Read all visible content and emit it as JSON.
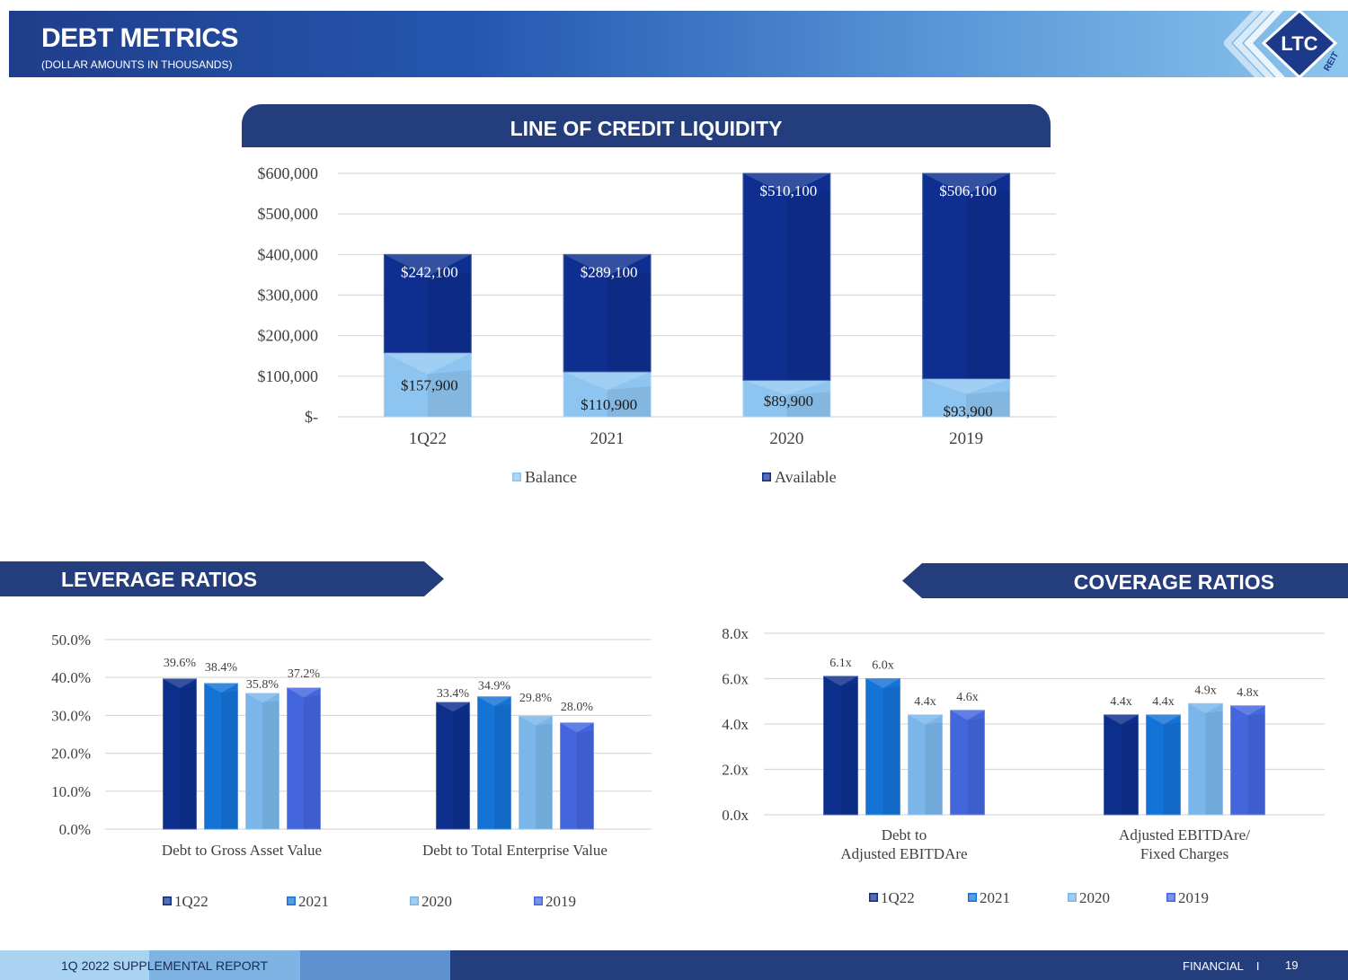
{
  "header": {
    "title": "DEBT METRICS",
    "subtitle": "(DOLLAR AMOUNTS IN THOUSANDS)",
    "logo_text": "LTC",
    "logo_subtext": "REIT"
  },
  "sections": {
    "line_of_credit": "LINE OF CREDIT LIQUIDITY",
    "leverage": "LEVERAGE RATIOS",
    "coverage": "COVERAGE RATIOS"
  },
  "footer": {
    "left": "1Q 2022 SUPPLEMENTAL REPORT",
    "right": "FINANCIAL    I",
    "page": "19"
  },
  "colors": {
    "navy": "#243d7c",
    "s1q22": "#0d2f8c",
    "s2021": "#1473d6",
    "s2020": "#7ab6ea",
    "s2019": "#4466dd",
    "balance": "#8ec5f0",
    "available": "#0e2f8f"
  },
  "chart_data": [
    {
      "type": "bar",
      "stacked": true,
      "title": "LINE OF CREDIT LIQUIDITY",
      "categories": [
        "1Q22",
        "2021",
        "2020",
        "2019"
      ],
      "series": [
        {
          "name": "Balance",
          "values": [
            157900,
            110900,
            89900,
            93900
          ],
          "labels": [
            "$157,900",
            "$110,900",
            "$89,900",
            "$93,900"
          ]
        },
        {
          "name": "Available",
          "values": [
            242100,
            289100,
            510100,
            506100
          ],
          "labels": [
            "$242,100",
            "$289,100",
            "$510,100",
            "$506,100"
          ]
        }
      ],
      "ylim": [
        0,
        600000
      ],
      "yticks": [
        0,
        100000,
        200000,
        300000,
        400000,
        500000,
        600000
      ],
      "ytick_labels": [
        "$-",
        "$100,000",
        "$200,000",
        "$300,000",
        "$400,000",
        "$500,000",
        "$600,000"
      ],
      "grid": true,
      "legend": "bottom"
    },
    {
      "type": "bar",
      "title": "LEVERAGE RATIOS",
      "categories": [
        "Debt to Gross Asset Value",
        "Debt to Total Enterprise Value"
      ],
      "series": [
        {
          "name": "1Q22",
          "values": [
            39.6,
            33.4
          ],
          "labels": [
            "39.6%",
            "33.4%"
          ]
        },
        {
          "name": "2021",
          "values": [
            38.4,
            34.9
          ],
          "labels": [
            "38.4%",
            "34.9%"
          ]
        },
        {
          "name": "2020",
          "values": [
            35.8,
            29.8
          ],
          "labels": [
            "35.8%",
            "29.8%"
          ]
        },
        {
          "name": "2019",
          "values": [
            37.2,
            28.0
          ],
          "labels": [
            "37.2%",
            "28.0%"
          ]
        }
      ],
      "ylim": [
        0,
        50
      ],
      "yticks": [
        0,
        10,
        20,
        30,
        40,
        50
      ],
      "ytick_labels": [
        "0.0%",
        "10.0%",
        "20.0%",
        "30.0%",
        "40.0%",
        "50.0%"
      ],
      "grid": true,
      "legend": "bottom"
    },
    {
      "type": "bar",
      "title": "COVERAGE RATIOS",
      "categories": [
        [
          "Debt to",
          "Adjusted EBITDAre"
        ],
        [
          "Adjusted EBITDAre/",
          "Fixed Charges"
        ]
      ],
      "series": [
        {
          "name": "1Q22",
          "values": [
            6.1,
            4.4
          ],
          "labels": [
            "6.1x",
            "4.4x"
          ]
        },
        {
          "name": "2021",
          "values": [
            6.0,
            4.4
          ],
          "labels": [
            "6.0x",
            "4.4x"
          ]
        },
        {
          "name": "2020",
          "values": [
            4.4,
            4.9
          ],
          "labels": [
            "4.4x",
            "4.9x"
          ]
        },
        {
          "name": "2019",
          "values": [
            4.6,
            4.8
          ],
          "labels": [
            "4.6x",
            "4.8x"
          ]
        }
      ],
      "ylim": [
        0,
        8
      ],
      "yticks": [
        0,
        2,
        4,
        6,
        8
      ],
      "ytick_labels": [
        "0.0x",
        "2.0x",
        "4.0x",
        "6.0x",
        "8.0x"
      ],
      "grid": true,
      "legend": "bottom"
    }
  ]
}
